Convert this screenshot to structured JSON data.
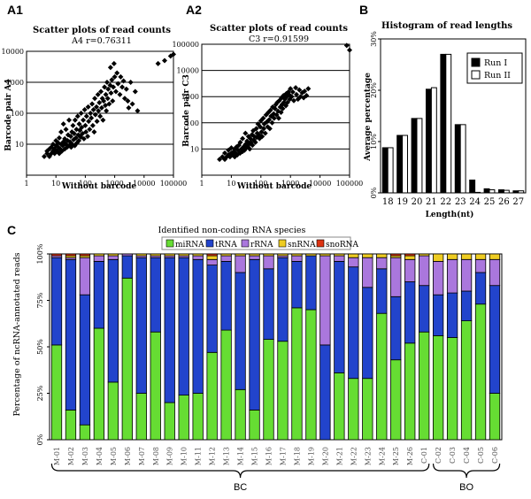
{
  "chart_data": [
    {
      "panel": "A1",
      "type": "scatter",
      "title": "Scatter plots of read counts",
      "subtitle": "A4 r=0.76311",
      "xlabel": "Without barcode",
      "ylabel": "Barcode pair A4",
      "xscale": "log",
      "yscale": "log",
      "xlim": [
        1,
        100000
      ],
      "ylim": [
        1,
        10000
      ],
      "xticks": [
        "1",
        "10",
        "100",
        "1000",
        "10000",
        "100000"
      ],
      "yticks": [
        "10",
        "100",
        "1000",
        "10000"
      ],
      "points": [
        [
          4,
          4
        ],
        [
          5,
          5
        ],
        [
          5,
          6
        ],
        [
          6,
          4
        ],
        [
          6,
          7
        ],
        [
          7,
          5
        ],
        [
          7,
          8
        ],
        [
          8,
          6
        ],
        [
          8,
          10
        ],
        [
          9,
          5
        ],
        [
          9,
          7
        ],
        [
          10,
          9
        ],
        [
          10,
          13
        ],
        [
          11,
          6
        ],
        [
          12,
          8
        ],
        [
          12,
          11
        ],
        [
          13,
          5
        ],
        [
          13,
          16
        ],
        [
          14,
          7
        ],
        [
          15,
          10
        ],
        [
          15,
          25
        ],
        [
          16,
          6
        ],
        [
          17,
          9
        ],
        [
          18,
          12
        ],
        [
          18,
          45
        ],
        [
          20,
          7
        ],
        [
          20,
          15
        ],
        [
          22,
          10
        ],
        [
          22,
          30
        ],
        [
          24,
          8
        ],
        [
          25,
          13
        ],
        [
          26,
          20
        ],
        [
          28,
          9
        ],
        [
          28,
          60
        ],
        [
          30,
          12
        ],
        [
          32,
          18
        ],
        [
          33,
          8
        ],
        [
          35,
          25
        ],
        [
          36,
          10
        ],
        [
          38,
          40
        ],
        [
          40,
          14
        ],
        [
          42,
          22
        ],
        [
          44,
          9
        ],
        [
          45,
          60
        ],
        [
          48,
          16
        ],
        [
          50,
          30
        ],
        [
          52,
          11
        ],
        [
          55,
          80
        ],
        [
          58,
          20
        ],
        [
          60,
          13
        ],
        [
          62,
          45
        ],
        [
          65,
          28
        ],
        [
          70,
          17
        ],
        [
          72,
          100
        ],
        [
          75,
          35
        ],
        [
          80,
          22
        ],
        [
          85,
          60
        ],
        [
          90,
          15
        ],
        [
          95,
          130
        ],
        [
          100,
          40
        ],
        [
          105,
          25
        ],
        [
          110,
          80
        ],
        [
          120,
          18
        ],
        [
          125,
          160
        ],
        [
          130,
          55
        ],
        [
          140,
          30
        ],
        [
          150,
          100
        ],
        [
          160,
          70
        ],
        [
          170,
          200
        ],
        [
          180,
          40
        ],
        [
          190,
          130
        ],
        [
          200,
          25
        ],
        [
          210,
          300
        ],
        [
          220,
          90
        ],
        [
          240,
          160
        ],
        [
          250,
          55
        ],
        [
          270,
          400
        ],
        [
          280,
          120
        ],
        [
          300,
          220
        ],
        [
          320,
          80
        ],
        [
          340,
          500
        ],
        [
          360,
          150
        ],
        [
          380,
          300
        ],
        [
          400,
          60
        ],
        [
          420,
          250
        ],
        [
          450,
          700
        ],
        [
          480,
          180
        ],
        [
          500,
          400
        ],
        [
          520,
          120
        ],
        [
          550,
          1000
        ],
        [
          580,
          300
        ],
        [
          600,
          600
        ],
        [
          650,
          200
        ],
        [
          700,
          800
        ],
        [
          720,
          3000
        ],
        [
          750,
          450
        ],
        [
          800,
          1200
        ],
        [
          850,
          250
        ],
        [
          900,
          700
        ],
        [
          950,
          4000
        ],
        [
          1000,
          1500
        ],
        [
          1100,
          500
        ],
        [
          1200,
          2000
        ],
        [
          1300,
          900
        ],
        [
          1500,
          400
        ],
        [
          1600,
          1500
        ],
        [
          1800,
          700
        ],
        [
          2000,
          1100
        ],
        [
          2200,
          300
        ],
        [
          2500,
          600
        ],
        [
          2800,
          250
        ],
        [
          3000,
          150
        ],
        [
          3500,
          1000
        ],
        [
          4000,
          200
        ],
        [
          5000,
          500
        ],
        [
          6000,
          120
        ],
        [
          30000,
          4000
        ],
        [
          50000,
          5000
        ],
        [
          80000,
          7000
        ],
        [
          100000,
          8000
        ]
      ]
    },
    {
      "panel": "A2",
      "type": "scatter",
      "title": "Scatter plots of read counts",
      "subtitle": "C3 r=0.91599",
      "xlabel": "Without barcode",
      "ylabel": "Barcode pair C3",
      "xscale": "log",
      "yscale": "log",
      "xlim": [
        1,
        100000
      ],
      "ylim": [
        1,
        100000
      ],
      "xticks": [
        "1",
        "10",
        "100",
        "1000",
        "10000",
        "100000"
      ],
      "yticks": [
        "10",
        "100",
        "1000",
        "10000",
        "100000"
      ],
      "points": [
        [
          4,
          4
        ],
        [
          5,
          5
        ],
        [
          6,
          4
        ],
        [
          6,
          7
        ],
        [
          7,
          5
        ],
        [
          8,
          6
        ],
        [
          8,
          9
        ],
        [
          9,
          5
        ],
        [
          10,
          7
        ],
        [
          10,
          11
        ],
        [
          11,
          6
        ],
        [
          12,
          8
        ],
        [
          13,
          5
        ],
        [
          13,
          10
        ],
        [
          14,
          7
        ],
        [
          15,
          12
        ],
        [
          16,
          6
        ],
        [
          17,
          9
        ],
        [
          18,
          14
        ],
        [
          20,
          7
        ],
        [
          20,
          18
        ],
        [
          22,
          10
        ],
        [
          24,
          8
        ],
        [
          24,
          25
        ],
        [
          26,
          12
        ],
        [
          28,
          9
        ],
        [
          30,
          15
        ],
        [
          30,
          40
        ],
        [
          32,
          11
        ],
        [
          34,
          20
        ],
        [
          36,
          13
        ],
        [
          38,
          30
        ],
        [
          40,
          16
        ],
        [
          42,
          10
        ],
        [
          44,
          25
        ],
        [
          46,
          18
        ],
        [
          50,
          35
        ],
        [
          52,
          14
        ],
        [
          55,
          50
        ],
        [
          58,
          22
        ],
        [
          60,
          30
        ],
        [
          65,
          18
        ],
        [
          70,
          60
        ],
        [
          72,
          28
        ],
        [
          75,
          40
        ],
        [
          80,
          90
        ],
        [
          85,
          35
        ],
        [
          90,
          25
        ],
        [
          95,
          70
        ],
        [
          100,
          120
        ],
        [
          105,
          45
        ],
        [
          110,
          30
        ],
        [
          120,
          150
        ],
        [
          125,
          60
        ],
        [
          130,
          90
        ],
        [
          140,
          40
        ],
        [
          150,
          200
        ],
        [
          160,
          110
        ],
        [
          170,
          70
        ],
        [
          180,
          250
        ],
        [
          190,
          130
        ],
        [
          200,
          60
        ],
        [
          210,
          300
        ],
        [
          220,
          180
        ],
        [
          240,
          100
        ],
        [
          250,
          400
        ],
        [
          270,
          220
        ],
        [
          280,
          150
        ],
        [
          300,
          350
        ],
        [
          320,
          500
        ],
        [
          340,
          200
        ],
        [
          360,
          600
        ],
        [
          380,
          280
        ],
        [
          400,
          150
        ],
        [
          420,
          700
        ],
        [
          450,
          400
        ],
        [
          480,
          250
        ],
        [
          500,
          900
        ],
        [
          520,
          500
        ],
        [
          550,
          350
        ],
        [
          580,
          1100
        ],
        [
          600,
          600
        ],
        [
          650,
          800
        ],
        [
          700,
          450
        ],
        [
          720,
          1300
        ],
        [
          750,
          1000
        ],
        [
          800,
          600
        ],
        [
          850,
          1500
        ],
        [
          900,
          1200
        ],
        [
          950,
          800
        ],
        [
          1000,
          2000
        ],
        [
          1100,
          1000
        ],
        [
          1200,
          1500
        ],
        [
          1300,
          700
        ],
        [
          1500,
          2200
        ],
        [
          1600,
          1200
        ],
        [
          1800,
          800
        ],
        [
          2000,
          1800
        ],
        [
          2200,
          1000
        ],
        [
          2500,
          1400
        ],
        [
          2800,
          900
        ],
        [
          3000,
          1600
        ],
        [
          3500,
          1100
        ],
        [
          4000,
          2000
        ],
        [
          80000,
          90000
        ],
        [
          100000,
          60000
        ]
      ]
    },
    {
      "panel": "B",
      "type": "bar",
      "title": "Histogram of read lengths",
      "xlabel": "Length(nt)",
      "ylabel": "Average percentage",
      "ylim": [
        0,
        30
      ],
      "yticks": [
        "0%",
        "10%",
        "20%",
        "30%"
      ],
      "categories": [
        "18",
        "19",
        "20",
        "21",
        "22",
        "23",
        "24",
        "25",
        "26",
        "27"
      ],
      "series": [
        {
          "name": "Run I",
          "color": "#000000",
          "values": [
            8.8,
            11.2,
            14.5,
            20.2,
            27.0,
            13.3,
            2.5,
            0.8,
            0.6,
            0.4
          ]
        },
        {
          "name": "Run II",
          "color": "#ffffff",
          "values": [
            8.8,
            11.2,
            14.5,
            20.5,
            27.0,
            13.3,
            0.1,
            0.6,
            0.5,
            0.4
          ]
        }
      ]
    },
    {
      "panel": "C",
      "type": "bar",
      "stacked": true,
      "title": "Identified non-coding RNA species",
      "ylabel": "Percentage of ncRNA-annotated reads",
      "ylim": [
        0,
        100
      ],
      "yticks": [
        "0%",
        "25%",
        "50%",
        "75%",
        "100%"
      ],
      "categories": [
        "M-01",
        "M-02",
        "M-03",
        "M-04",
        "M-05",
        "M-06",
        "M-07",
        "M-08",
        "M-09",
        "M-10",
        "M-11",
        "M-12",
        "M-13",
        "M-14",
        "M-15",
        "M-16",
        "M-17",
        "M-18",
        "M-19",
        "M-20",
        "M-21",
        "M-22",
        "M-23",
        "M-24",
        "M-25",
        "M-26",
        "C-01",
        "C-02",
        "C-03",
        "C-04",
        "C-05",
        "C-06"
      ],
      "series": [
        {
          "name": "miRNA",
          "color": "#66dd33",
          "values": [
            51,
            16,
            8,
            60,
            31,
            87,
            25,
            58,
            20,
            24,
            25,
            47,
            59,
            27,
            16,
            54,
            53,
            71,
            70,
            0,
            36,
            33,
            33,
            68,
            43,
            52,
            58,
            56,
            55,
            64,
            73,
            25
          ]
        },
        {
          "name": "tRNA",
          "color": "#2244cc",
          "values": [
            47,
            81,
            70,
            36,
            66,
            12,
            73,
            40,
            78,
            74,
            72,
            47,
            37,
            63,
            81,
            38,
            45,
            25,
            29,
            51,
            60,
            60,
            49,
            24,
            34,
            33,
            25,
            22,
            24,
            16,
            17,
            58
          ]
        },
        {
          "name": "rRNA",
          "color": "#aa77dd",
          "values": [
            1,
            1,
            20,
            3,
            2,
            1,
            1,
            1,
            1,
            1,
            2,
            3,
            3,
            9,
            2,
            7,
            1,
            3,
            0,
            48,
            3,
            5,
            16,
            6,
            21,
            12,
            16,
            18,
            18,
            17,
            7,
            14
          ]
        },
        {
          "name": "snRNA",
          "color": "#eecc22",
          "values": [
            0,
            1,
            1,
            1,
            1,
            0,
            1,
            1,
            1,
            1,
            1,
            2,
            1,
            1,
            1,
            1,
            1,
            1,
            1,
            1,
            1,
            2,
            2,
            2,
            1,
            2,
            1,
            4,
            3,
            3,
            3,
            3
          ]
        },
        {
          "name": "snoRNA",
          "color": "#dd3311",
          "values": [
            1,
            1,
            1,
            0,
            0,
            0,
            0,
            0,
            0,
            0,
            0,
            1,
            0,
            0,
            0,
            0,
            0,
            0,
            0,
            0,
            0,
            0,
            0,
            0,
            1,
            1,
            0,
            0,
            0,
            0,
            0,
            0
          ]
        }
      ],
      "groups": [
        {
          "label": "BC",
          "from": "M-01",
          "to": "C-01"
        },
        {
          "label": "BO",
          "from": "C-02",
          "to": "C-06"
        }
      ]
    }
  ]
}
